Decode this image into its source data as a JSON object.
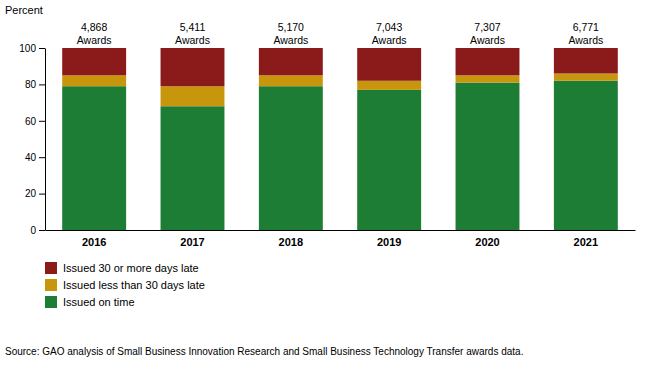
{
  "chart_data": {
    "type": "bar",
    "stacked": true,
    "grid": false,
    "legend": "bottom",
    "ylabel": "Percent",
    "source": "Source: GAO analysis of Small Business Innovation Research and Small Business Technology Transfer awards data.",
    "categories": [
      "2016",
      "2017",
      "2018",
      "2019",
      "2020",
      "2021"
    ],
    "series": [
      {
        "name": "Issued on time",
        "color": "#1e7d34",
        "values": [
          79,
          68,
          79,
          77,
          81,
          82
        ]
      },
      {
        "name": "Issued less than 30 days late",
        "color": "#c8960c",
        "values": [
          6,
          11,
          6,
          5,
          4,
          4
        ]
      },
      {
        "name": "Issued 30 or more days late",
        "color": "#8b1a1a",
        "values": [
          15,
          21,
          15,
          18,
          15,
          14
        ]
      }
    ],
    "annotations": [
      [
        "4,868",
        "Awards"
      ],
      [
        "5,411",
        "Awards"
      ],
      [
        "5,170",
        "Awards"
      ],
      [
        "7,043",
        "Awards"
      ],
      [
        "7,307",
        "Awards"
      ],
      [
        "6,771",
        "Awards"
      ]
    ],
    "ylim": [
      0,
      100
    ],
    "yticks": [
      0,
      20,
      40,
      60,
      80,
      100
    ]
  }
}
